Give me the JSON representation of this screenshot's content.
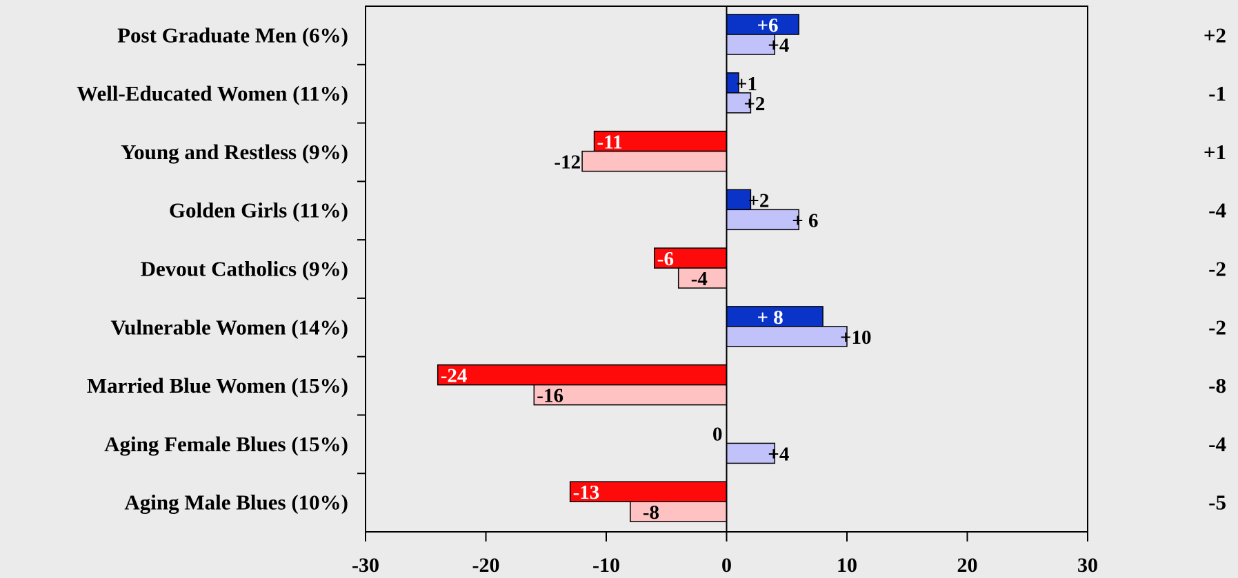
{
  "chart_data": {
    "type": "bar",
    "orientation": "horizontal",
    "title": "",
    "xlabel": "",
    "ylabel": "",
    "xlim": [
      -30,
      30
    ],
    "x_ticks": [
      -30,
      -20,
      -10,
      0,
      10,
      20,
      30
    ],
    "grid": false,
    "legend": "none",
    "categories": [
      "Post Graduate Men  (6%)",
      "Well-Educated Women  (11%)",
      "Young and Restless  (9%)",
      "Golden Girls  (11%)",
      "Devout Catholics  (9%)",
      "Vulnerable Women  (14%)",
      "Married Blue Women  (15%)",
      "Aging Female Blues  (15%)",
      "Aging Male Blues  (10%)"
    ],
    "series": [
      {
        "values": [
          6,
          1,
          -11,
          2,
          -6,
          8,
          -24,
          0,
          -13
        ],
        "labels": [
          "+6",
          "+1",
          "-11",
          "+2",
          "-6",
          "+ 8",
          "-24",
          "0",
          "-13"
        ],
        "colors": {
          "positive": "#0a34c8",
          "negative": "#ff0a0a"
        }
      },
      {
        "values": [
          4,
          2,
          -12,
          6,
          -4,
          10,
          -16,
          4,
          -8
        ],
        "labels": [
          "+4",
          "+2",
          "-12",
          "+ 6",
          "-4",
          "+10",
          "-16",
          "+4",
          "-8"
        ],
        "colors": {
          "positive": "#c2c2fa",
          "negative": "#ffc2c2"
        }
      }
    ],
    "right_column": [
      "+2",
      "-1",
      "+1",
      "-4",
      "-2",
      "-2",
      "-8",
      "-4",
      "-5"
    ]
  },
  "colors": {
    "background": "#ebebeb",
    "axis": "#000000",
    "bar_outline": "#000000"
  }
}
